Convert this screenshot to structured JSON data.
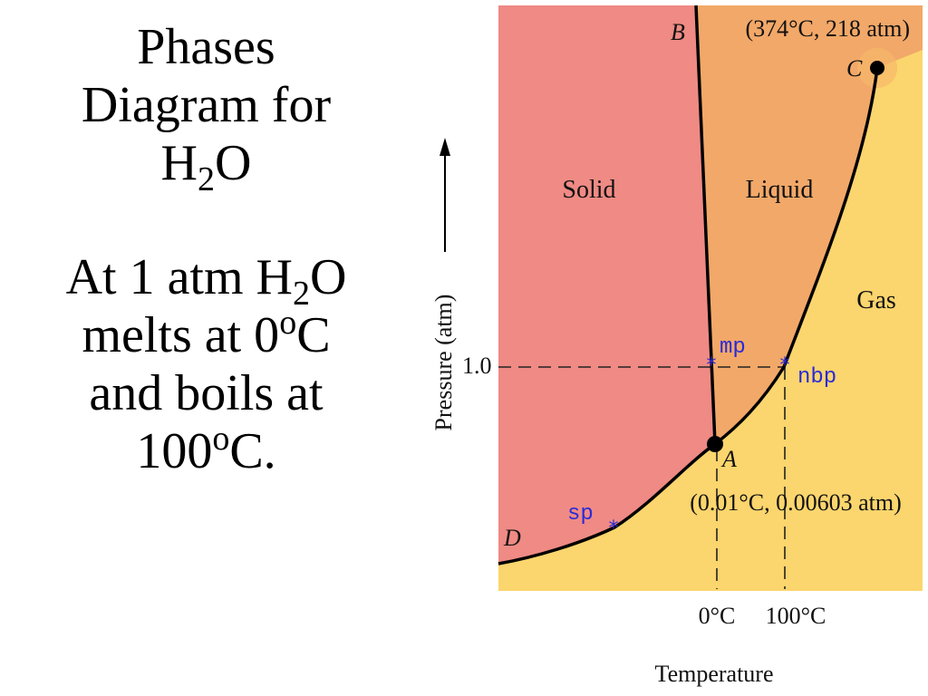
{
  "slide": {
    "title_line1": "Phases",
    "title_line2": "Diagram for",
    "title_formula_base": "H",
    "title_formula_sub": "2",
    "title_formula_tail": "O",
    "body_line1_prefix": "At 1 atm H",
    "body_line1_sub": "2",
    "body_line1_tail": "O",
    "body_line2_prefix": "melts at 0",
    "body_line2_sup": "o",
    "body_line2_tail": "C",
    "body_line3": "and boils at",
    "body_line4_prefix": "100",
    "body_line4_sup": "o",
    "body_line4_tail": "C."
  },
  "diagram": {
    "regions": {
      "solid": "Solid",
      "liquid": "Liquid",
      "gas": "Gas"
    },
    "points": {
      "B": "B",
      "C": "C",
      "A": "A",
      "D": "D",
      "critical_coords": "(374°C, 218 atm)",
      "triple_coords": "(0.01°C, 0.00603 atm)"
    },
    "markers": {
      "mp": "mp",
      "nbp": "nbp",
      "sp": "sp"
    },
    "axes": {
      "y_label": "Pressure (atm)",
      "y_tick": "1.0",
      "x_label": "Temperature",
      "x_tick_1": "0°C",
      "x_tick_2": "100°C"
    },
    "colors": {
      "solid": "#ef8a84",
      "liquid": "#f2a868",
      "gas": "#fbd56d",
      "curve": "#000000",
      "marker": "#2a2ad8"
    }
  }
}
